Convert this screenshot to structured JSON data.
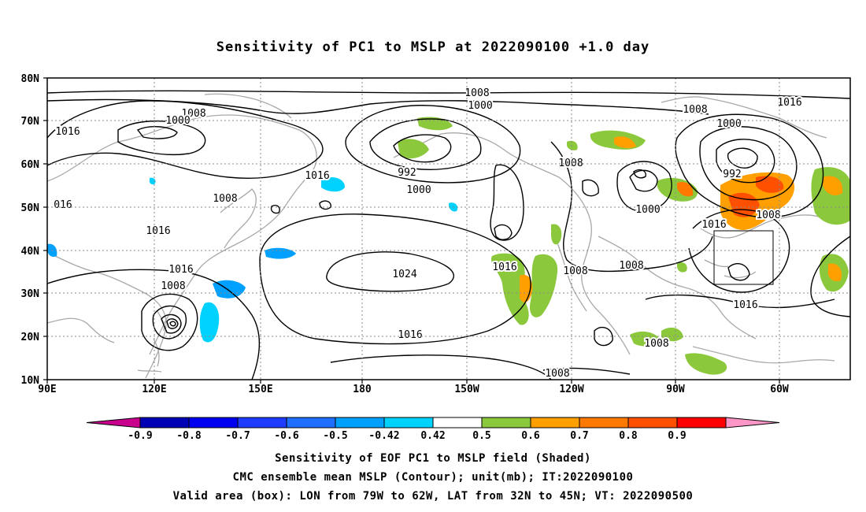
{
  "title": "Sensitivity of PC1 to MSLP at 2022090100 +1.0 day",
  "axes": {
    "lat_labels": [
      "80N",
      "70N",
      "60N",
      "50N",
      "40N",
      "30N",
      "20N",
      "10N"
    ],
    "lon_labels": [
      "90E",
      "120E",
      "150E",
      "180",
      "150W",
      "120W",
      "90W",
      "60W"
    ]
  },
  "contour_labels": [
    "1008",
    "1000",
    "1016",
    "1008",
    "1000",
    "992",
    "1000",
    "1008",
    "1016",
    "1016",
    "1008",
    "016",
    "1016",
    "1016",
    "1008",
    "1024",
    "1016",
    "1016",
    "1008",
    "1008",
    "1000",
    "1008",
    "1016",
    "1008",
    "1016",
    "1008",
    "1008",
    "1008",
    "1000",
    "992"
  ],
  "box": {
    "label": "Valid area",
    "lon": [
      "79W",
      "62W"
    ],
    "lat": [
      "32N",
      "45N"
    ]
  },
  "colorbar": {
    "colors": [
      "#c8008c",
      "#0000b4",
      "#0000f0",
      "#1e3cff",
      "#1e6eff",
      "#00a0ff",
      "#00d2ff",
      "#ffffff",
      "#8cc83c",
      "#ffa000",
      "#ff7800",
      "#ff5000",
      "#ff0000",
      "#ff96c8"
    ],
    "labels": [
      "-0.9",
      "-0.8",
      "-0.7",
      "-0.6",
      "-0.5",
      "-0.42",
      "0.42",
      "0.5",
      "0.6",
      "0.7",
      "0.8",
      "0.9"
    ]
  },
  "captions": {
    "line1": "Sensitivity of EOF PC1 to MSLP field (Shaded)",
    "line2": "CMC ensemble mean MSLP (Contour); unit(mb); IT:2022090100",
    "line3": "Valid area (box): LON from 79W to 62W, LAT from 32N to 45N; VT: 2022090500"
  }
}
